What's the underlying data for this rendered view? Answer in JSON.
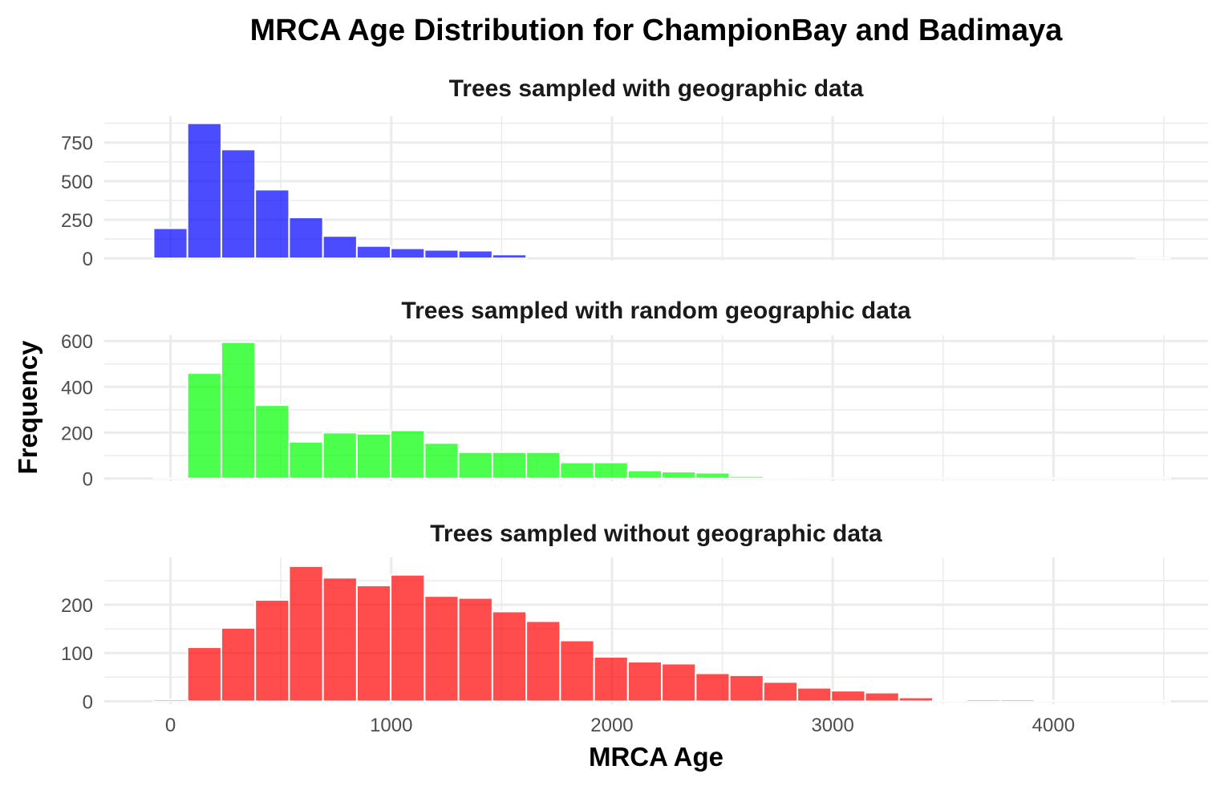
{
  "chart_data": {
    "type": "bar",
    "title": "MRCA Age Distribution for ChampionBay and Badimaya",
    "xlabel": "MRCA Age",
    "ylabel": "Frequency",
    "x_ticks": [
      0,
      1000,
      2000,
      3000,
      4000
    ],
    "xlim": [
      -300,
      4700
    ],
    "bin_width": 153.5,
    "bin_starts": [
      -76.75,
      76.75,
      230.25,
      383.75,
      537.25,
      690.75,
      844.25,
      997.75,
      1151.25,
      1304.75,
      1458.25,
      1611.75,
      1765.25,
      1918.75,
      2072.25,
      2225.75,
      2379.25,
      2532.75,
      2686.25,
      2839.75,
      2993.25,
      3146.75,
      3300.25,
      3453.75,
      3607.25,
      3760.75,
      3914.25,
      4067.75,
      4221.25,
      4374.75
    ],
    "grid": true,
    "legend": "none",
    "panels": [
      {
        "name": "Trees sampled with geographic data",
        "color": "#0000ff",
        "y_ticks": [
          0,
          250,
          500,
          750
        ],
        "ylim": [
          -15,
          920
        ],
        "values": [
          195,
          875,
          705,
          445,
          265,
          145,
          80,
          65,
          55,
          50,
          25,
          0,
          0,
          0,
          0,
          0,
          0,
          0,
          0,
          0,
          0,
          0,
          0,
          0,
          0,
          0,
          0,
          0,
          0,
          1
        ]
      },
      {
        "name": "Trees sampled with random geographic data",
        "color": "#00ff00",
        "y_ticks": [
          0,
          200,
          400,
          600
        ],
        "ylim": [
          -12,
          625
        ],
        "values": [
          1,
          460,
          595,
          320,
          160,
          200,
          195,
          210,
          155,
          115,
          115,
          115,
          70,
          70,
          35,
          30,
          25,
          10,
          2,
          1,
          1,
          1,
          1,
          1,
          1,
          1,
          1,
          1,
          1,
          1
        ]
      },
      {
        "name": "Trees sampled without geographic data",
        "color": "#ff0000",
        "y_ticks": [
          0,
          100,
          200
        ],
        "ylim": [
          -6,
          298
        ],
        "values": [
          4,
          112,
          152,
          210,
          280,
          256,
          240,
          262,
          218,
          214,
          186,
          166,
          126,
          92,
          82,
          78,
          58,
          54,
          40,
          28,
          22,
          18,
          8,
          1,
          4,
          4,
          1,
          1,
          1,
          1
        ]
      }
    ]
  }
}
